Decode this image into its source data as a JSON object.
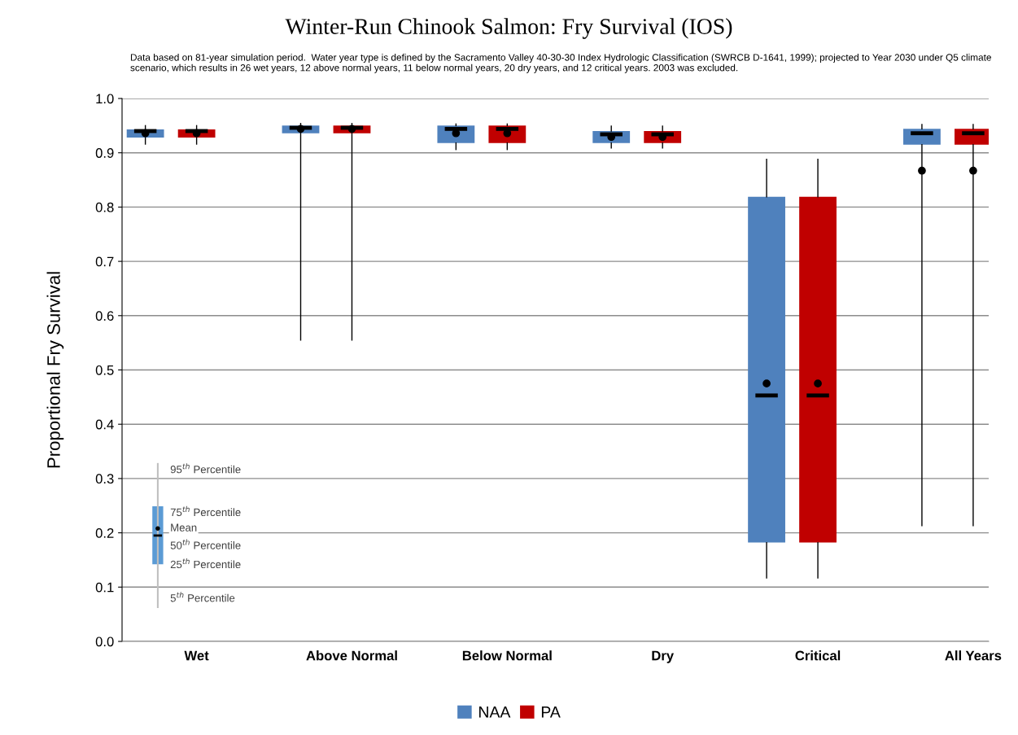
{
  "chart_data": {
    "type": "box",
    "title": "Winter-Run Chinook Salmon: Fry Survival (IOS)",
    "subtitle": "Data based on 81-year simulation period.  Water year type is defined by the Sacramento Valley 40-30-30 Index Hydrologic Classification (SWRCB D-1641, 1999); projected to Year 2030 under Q5 climate scenario, which results in 26 wet years, 12 above normal years, 11 below normal years, 20 dry years, and 12 critical years. 2003 was excluded.",
    "ylabel": "Proportional Fry Survival",
    "categories": [
      "Wet",
      "Above Normal",
      "Below Normal",
      "Dry",
      "Critical",
      "All Years"
    ],
    "series": [
      {
        "name": "NAA",
        "color": "#4f81bd",
        "boxes": [
          {
            "low": 0.916,
            "q1": 0.928,
            "median": 0.94,
            "q3": 0.943,
            "high": 0.95,
            "mean": 0.936
          },
          {
            "low": 0.555,
            "q1": 0.936,
            "median": 0.946,
            "q3": 0.95,
            "high": 0.954,
            "mean": 0.944
          },
          {
            "low": 0.906,
            "q1": 0.918,
            "median": 0.944,
            "q3": 0.95,
            "high": 0.953,
            "mean": 0.936
          },
          {
            "low": 0.909,
            "q1": 0.918,
            "median": 0.934,
            "q3": 0.94,
            "high": 0.949,
            "mean": 0.929
          },
          {
            "low": 0.117,
            "q1": 0.182,
            "median": 0.453,
            "q3": 0.819,
            "high": 0.888,
            "mean": 0.475
          },
          {
            "low": 0.213,
            "q1": 0.915,
            "median": 0.936,
            "q3": 0.944,
            "high": 0.952,
            "mean": 0.867
          }
        ]
      },
      {
        "name": "PA",
        "color": "#c00000",
        "boxes": [
          {
            "low": 0.916,
            "q1": 0.928,
            "median": 0.94,
            "q3": 0.943,
            "high": 0.95,
            "mean": 0.936
          },
          {
            "low": 0.555,
            "q1": 0.936,
            "median": 0.946,
            "q3": 0.95,
            "high": 0.954,
            "mean": 0.944
          },
          {
            "low": 0.906,
            "q1": 0.918,
            "median": 0.944,
            "q3": 0.95,
            "high": 0.953,
            "mean": 0.936
          },
          {
            "low": 0.909,
            "q1": 0.918,
            "median": 0.934,
            "q3": 0.94,
            "high": 0.949,
            "mean": 0.929
          },
          {
            "low": 0.117,
            "q1": 0.182,
            "median": 0.453,
            "q3": 0.819,
            "high": 0.888,
            "mean": 0.475
          },
          {
            "low": 0.213,
            "q1": 0.915,
            "median": 0.936,
            "q3": 0.944,
            "high": 0.952,
            "mean": 0.867
          }
        ]
      }
    ],
    "ylim": [
      0,
      1
    ],
    "yticks": [
      {
        "value": 0,
        "label": "0.0"
      },
      {
        "value": 0.1,
        "label": "0.1"
      },
      {
        "value": 0.2,
        "label": "0.2"
      },
      {
        "value": 0.3,
        "label": "0.3"
      },
      {
        "value": 0.4,
        "label": "0.4"
      },
      {
        "value": 0.5,
        "label": "0.5"
      },
      {
        "value": 0.6,
        "label": "0.6"
      },
      {
        "value": 0.7,
        "label": "0.7"
      },
      {
        "value": 0.8,
        "label": "0.8"
      },
      {
        "value": 0.9,
        "label": "0.9"
      },
      {
        "value": 1.0,
        "label": "1.0"
      }
    ],
    "grid": "y",
    "legend": "bottom",
    "annotations": [
      "95$^{th}$ Percentile",
      "75$^{th}$ Percentile",
      "Mean",
      "50$^{th}$ Percentile",
      "25$^{th}$ Percentile",
      "5$^{th}$ Percentile"
    ]
  }
}
